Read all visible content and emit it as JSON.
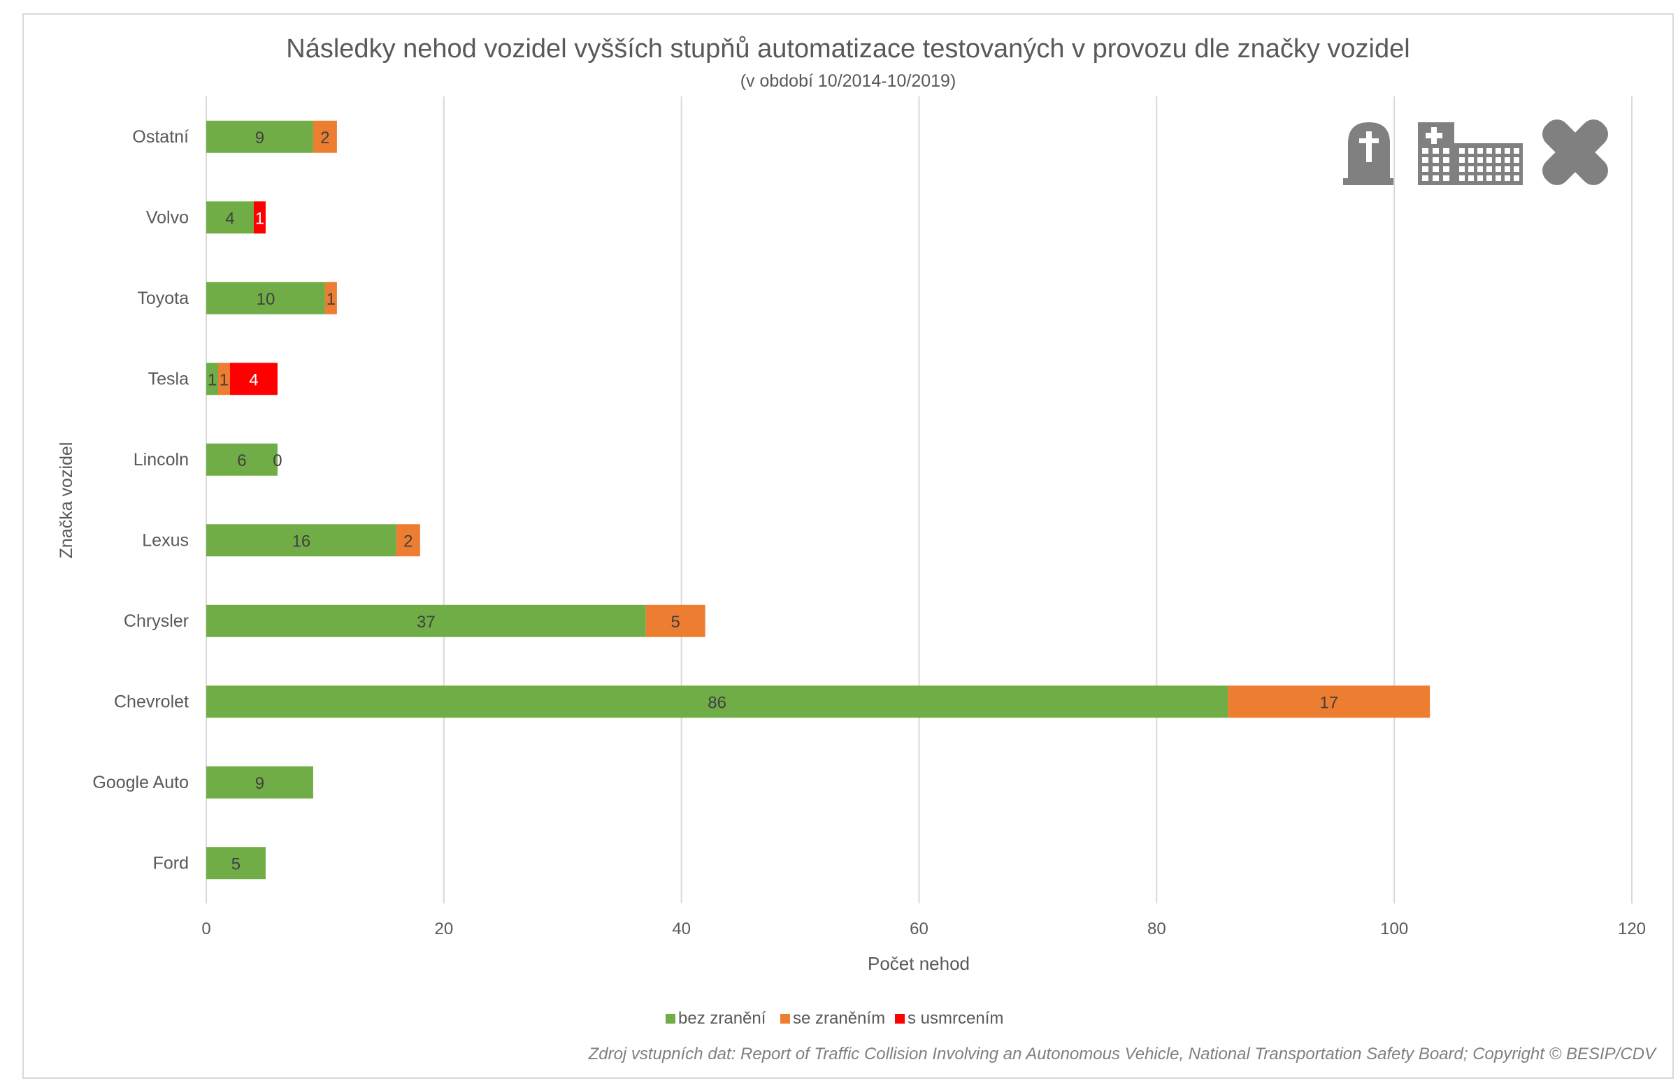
{
  "chart_data": {
    "type": "bar",
    "orientation": "horizontal",
    "stacked": true,
    "title": "Následky nehod vozidel vyšších stupňů automatizace testovaných v provozu dle značky vozidel",
    "subtitle": "(v období 10/2014-10/2019)",
    "xlabel": "Počet nehod",
    "ylabel": "Značka vozidel",
    "xlim": [
      0,
      120
    ],
    "xticks": [
      0,
      20,
      40,
      60,
      80,
      100,
      120
    ],
    "grid": "vertical",
    "legend_placement": "bottom",
    "categories": [
      "Ostatní",
      "Volvo",
      "Toyota",
      "Tesla",
      "Lincoln",
      "Lexus",
      "Chrysler",
      "Chevrolet",
      "Google Auto",
      "Ford"
    ],
    "series": [
      {
        "name": "bez zranění",
        "color": "#70AD47",
        "values": [
          9,
          4,
          10,
          1,
          6,
          16,
          37,
          86,
          9,
          5
        ]
      },
      {
        "name": "se zraněním",
        "color": "#ED7D31",
        "values": [
          2,
          null,
          1,
          1,
          0,
          2,
          5,
          17,
          null,
          null
        ]
      },
      {
        "name": "s usmrcením",
        "color": "#FF0000",
        "values": [
          null,
          1,
          null,
          4,
          null,
          null,
          null,
          null,
          null,
          null
        ]
      }
    ],
    "source": "Zdroj vstupních dat: Report of Traffic Collision Involving an Autonomous Vehicle, National Transportation Safety Board; Copyright © BESIP/CDV",
    "icons": [
      "tombstone-icon",
      "hospital-icon",
      "bandage-icon"
    ],
    "icon_color": "#808080"
  }
}
